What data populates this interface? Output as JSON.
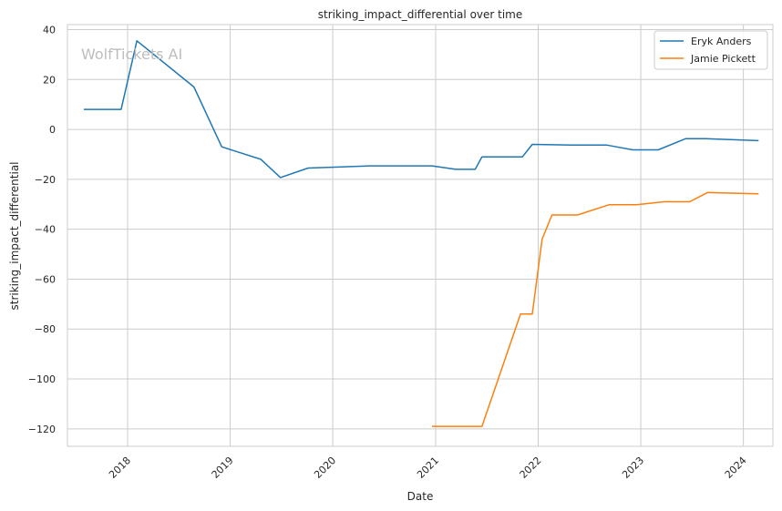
{
  "chart_data": {
    "type": "line",
    "title": "striking_impact_differential over time",
    "xlabel": "Date",
    "ylabel": "striking_impact_differential",
    "watermark": "WolfTickets AI",
    "x_ticks": [
      "2018",
      "2019",
      "2020",
      "2021",
      "2022",
      "2023",
      "2024"
    ],
    "y_ticks": [
      40,
      20,
      0,
      -20,
      -40,
      -60,
      -80,
      -100,
      -120
    ],
    "xlim": [
      "2017-06-01",
      "2024-04-15"
    ],
    "ylim": [
      -127,
      42
    ],
    "grid": true,
    "legend_position": "top-right",
    "series": [
      {
        "name": "Eryk Anders",
        "color": "#1f77b4",
        "points": [
          [
            "2017-07-29",
            8
          ],
          [
            "2017-12-09",
            8
          ],
          [
            "2018-02-03",
            35.5
          ],
          [
            "2018-08-25",
            17
          ],
          [
            "2018-12-02",
            -7
          ],
          [
            "2019-04-20",
            -12
          ],
          [
            "2019-06-29",
            -19.3
          ],
          [
            "2019-10-05",
            -15.5
          ],
          [
            "2020-05-13",
            -14.6
          ],
          [
            "2020-12-19",
            -14.6
          ],
          [
            "2021-03-13",
            -16
          ],
          [
            "2021-05-22",
            -16
          ],
          [
            "2021-06-15",
            -11
          ],
          [
            "2021-11-06",
            -11
          ],
          [
            "2021-12-11",
            -6
          ],
          [
            "2022-04-30",
            -6.3
          ],
          [
            "2022-09-03",
            -6.3
          ],
          [
            "2022-12-03",
            -8.2
          ],
          [
            "2023-03-04",
            -8.2
          ],
          [
            "2023-06-10",
            -3.7
          ],
          [
            "2023-08-19",
            -3.7
          ],
          [
            "2024-02-24",
            -4.5
          ]
        ]
      },
      {
        "name": "Jamie Pickett",
        "color": "#ff7f0e",
        "points": [
          [
            "2020-12-19",
            -119
          ],
          [
            "2021-06-15",
            -119
          ],
          [
            "2021-10-30",
            -74
          ],
          [
            "2021-12-11",
            -74
          ],
          [
            "2022-01-15",
            -44
          ],
          [
            "2022-02-19",
            -34.3
          ],
          [
            "2022-05-21",
            -34.3
          ],
          [
            "2022-09-10",
            -30.2
          ],
          [
            "2022-12-17",
            -30.2
          ],
          [
            "2023-03-25",
            -29
          ],
          [
            "2023-06-24",
            -29
          ],
          [
            "2023-08-26",
            -25.3
          ],
          [
            "2024-02-24",
            -25.8
          ]
        ]
      }
    ]
  }
}
